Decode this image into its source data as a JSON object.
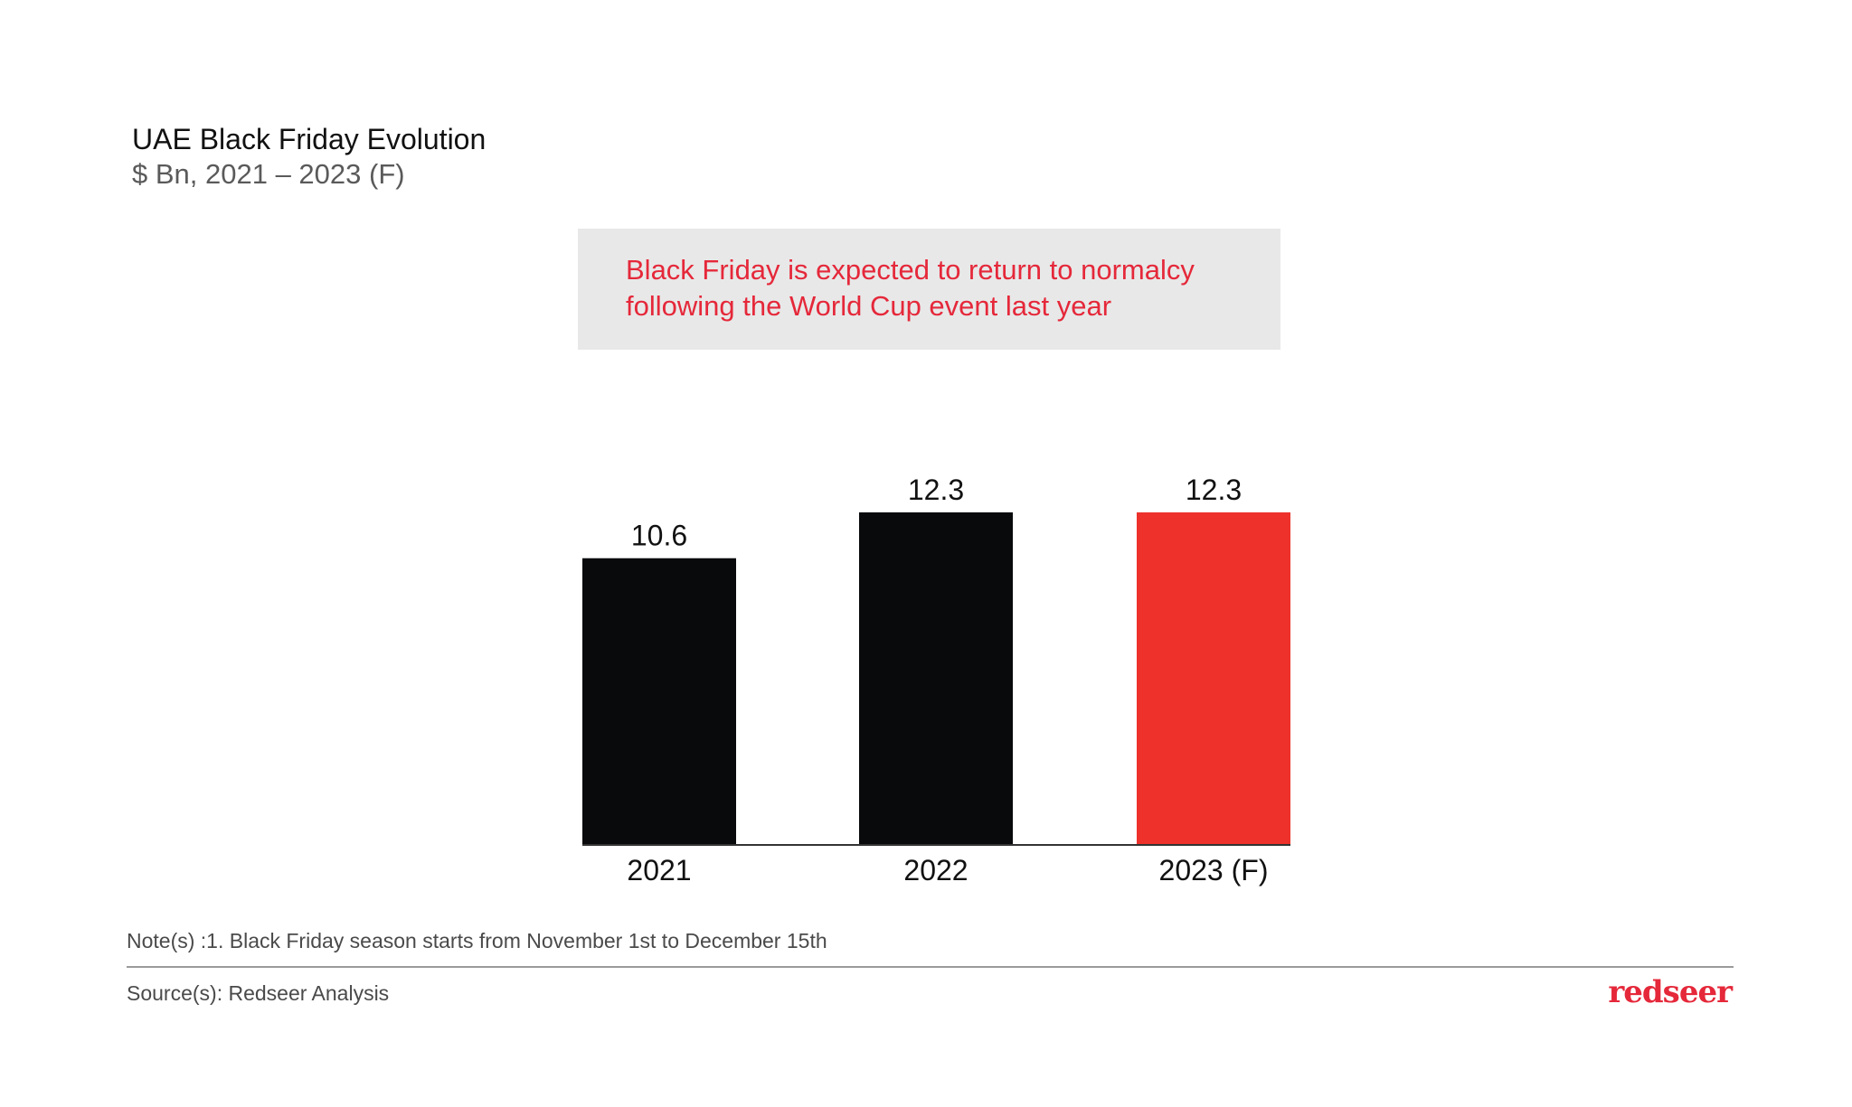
{
  "colors": {
    "bar_default": "#080a0c",
    "bar_forecast": "#ee312b",
    "callout_text": "#e5283a",
    "callout_bg": "#e8e8e8",
    "axis": "#333333",
    "label": "#111111"
  },
  "header": {
    "title": "UAE Black Friday Evolution",
    "subtitle": "$ Bn, 2021 – 2023 (F)"
  },
  "callout": {
    "line1": "Black Friday is expected to return to normalcy",
    "line2": "following the World Cup event last year"
  },
  "chart_data": {
    "type": "bar",
    "title": "UAE Black Friday Evolution",
    "subtitle": "$ Bn, 2021 – 2023 (F)",
    "xlabel": "",
    "ylabel": "$ Bn",
    "categories": [
      "2021",
      "2022",
      "2023 (F)"
    ],
    "values": [
      10.6,
      12.3,
      12.3
    ],
    "value_labels": [
      "10.6",
      "12.3",
      "12.3"
    ],
    "highlight": [
      false,
      false,
      true
    ],
    "ylim": [
      0,
      12.3
    ],
    "grid": false,
    "legend": "none"
  },
  "footer": {
    "note": "Note(s) :1. Black Friday season starts from November 1st to December 15th",
    "source": "Source(s): Redseer Analysis",
    "logo_text": "redseer"
  }
}
